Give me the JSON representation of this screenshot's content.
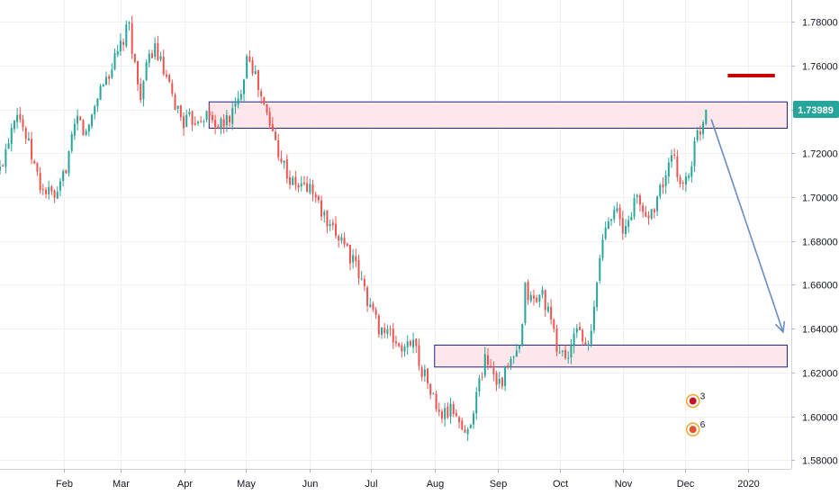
{
  "chart_data": {
    "type": "candlestick",
    "y_ticks": [
      "1.78000",
      "1.76000",
      "1.74000",
      "1.72000",
      "1.70000",
      "1.68000",
      "1.66000",
      "1.64000",
      "1.62000",
      "1.60000",
      "1.58000"
    ],
    "ylim": [
      1.576,
      1.79
    ],
    "x_ticks": [
      "Feb",
      "Mar",
      "Apr",
      "May",
      "Jun",
      "Jul",
      "Aug",
      "Sep",
      "Oct",
      "Nov",
      "Dec",
      "2020"
    ],
    "x_tick_days": [
      31,
      59,
      90,
      120,
      151,
      181,
      212,
      243,
      273,
      304,
      334,
      365
    ],
    "xlim_days": [
      0,
      386
    ],
    "last_price_label": "1.73989",
    "last_price": 1.73989,
    "path_keypoints": [
      [
        0,
        1.712
      ],
      [
        8,
        1.742
      ],
      [
        20,
        1.704
      ],
      [
        28,
        1.699
      ],
      [
        38,
        1.736
      ],
      [
        42,
        1.728
      ],
      [
        48,
        1.748
      ],
      [
        56,
        1.762
      ],
      [
        63,
        1.778
      ],
      [
        68,
        1.746
      ],
      [
        75,
        1.77
      ],
      [
        84,
        1.745
      ],
      [
        90,
        1.734
      ],
      [
        100,
        1.738
      ],
      [
        108,
        1.732
      ],
      [
        116,
        1.742
      ],
      [
        121,
        1.768
      ],
      [
        127,
        1.746
      ],
      [
        135,
        1.724
      ],
      [
        142,
        1.706
      ],
      [
        152,
        1.704
      ],
      [
        161,
        1.684
      ],
      [
        167,
        1.682
      ],
      [
        176,
        1.662
      ],
      [
        184,
        1.642
      ],
      [
        191,
        1.636
      ],
      [
        198,
        1.629
      ],
      [
        201,
        1.638
      ],
      [
        204,
        1.626
      ],
      [
        210,
        1.612
      ],
      [
        214,
        1.6
      ],
      [
        222,
        1.603
      ],
      [
        227,
        1.59
      ],
      [
        232,
        1.608
      ],
      [
        237,
        1.628
      ],
      [
        240,
        1.622
      ],
      [
        244,
        1.615
      ],
      [
        250,
        1.626
      ],
      [
        254,
        1.63
      ],
      [
        256,
        1.658
      ],
      [
        260,
        1.652
      ],
      [
        265,
        1.656
      ],
      [
        272,
        1.63
      ],
      [
        278,
        1.627
      ],
      [
        282,
        1.644
      ],
      [
        286,
        1.628
      ],
      [
        289,
        1.64
      ],
      [
        292,
        1.67
      ],
      [
        296,
        1.69
      ],
      [
        300,
        1.697
      ],
      [
        304,
        1.682
      ],
      [
        310,
        1.7
      ],
      [
        316,
        1.69
      ],
      [
        322,
        1.703
      ],
      [
        328,
        1.718
      ],
      [
        333,
        1.705
      ],
      [
        336,
        1.711
      ],
      [
        340,
        1.728
      ],
      [
        345,
        1.739
      ]
    ],
    "annotations": {
      "resistance_zone": {
        "day_start": 102,
        "day_end": 384,
        "y_low": 1.7315,
        "y_high": 1.7435
      },
      "support_zone": {
        "day_start": 212,
        "day_end": 384,
        "y_low": 1.6225,
        "y_high": 1.6325
      },
      "projection_arrow": {
        "from": [
          347,
          1.7355
        ],
        "to": [
          382,
          1.6385
        ]
      },
      "target_marker": {
        "day_start": 355,
        "day_end": 378,
        "y": 1.7555
      }
    },
    "event_badges": [
      {
        "label": "3",
        "day": 338,
        "y": 1.607
      },
      {
        "label": "6",
        "day": 338,
        "y": 1.594
      }
    ],
    "colors": {
      "up": "#26a69a",
      "down": "#ef5350",
      "zone_fill": "#fde7ea",
      "zone_border": "#1a237e",
      "arrow": "#6a8bc6",
      "target": "#cc0000",
      "grid": "#eef0f4",
      "price_badge": "#26a69a"
    }
  }
}
